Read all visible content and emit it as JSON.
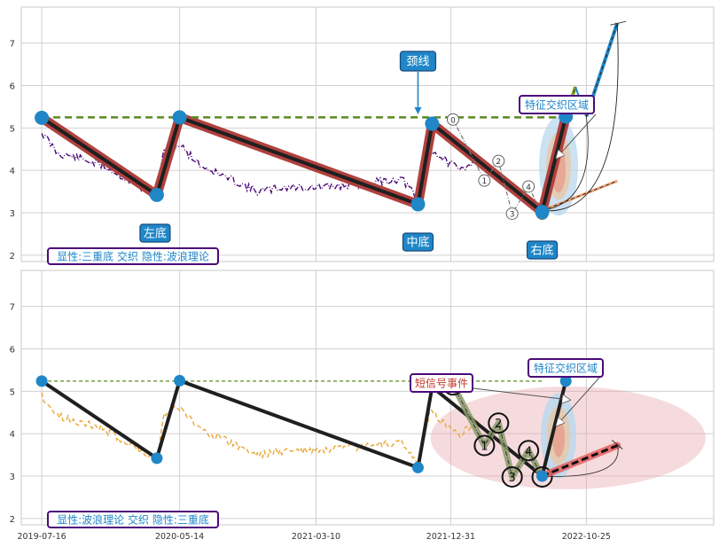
{
  "chart_data": [
    {
      "type": "line",
      "panel": "top",
      "xlim": [
        "2019-06-01",
        "2023-08-01"
      ],
      "ylim": [
        1.85,
        7.85
      ],
      "yticks": [
        2,
        3,
        4,
        5,
        6,
        7
      ],
      "grid": true,
      "price_trace_points": [
        [
          "2019-07-16",
          4.9
        ],
        [
          "2019-08-20",
          4.4
        ],
        [
          "2019-10-01",
          4.3
        ],
        [
          "2019-12-01",
          4.1
        ],
        [
          "2020-02-01",
          3.7
        ],
        [
          "2020-03-25",
          3.4
        ],
        [
          "2020-04-10",
          4.5
        ],
        [
          "2020-05-14",
          4.6
        ],
        [
          "2020-07-01",
          4.1
        ],
        [
          "2020-09-01",
          3.8
        ],
        [
          "2020-11-01",
          3.5
        ],
        [
          "2021-01-01",
          3.6
        ],
        [
          "2021-04-01",
          3.6
        ],
        [
          "2021-07-01",
          3.7
        ],
        [
          "2021-09-15",
          3.8
        ],
        [
          "2021-10-20",
          3.3
        ],
        [
          "2021-11-15",
          4.5
        ],
        [
          "2021-12-10",
          4.3
        ],
        [
          "2022-01-20",
          4.0
        ],
        [
          "2022-03-01",
          4.3
        ]
      ],
      "main_path": [
        [
          "2019-07-16",
          5.24
        ],
        [
          "2020-03-25",
          3.42
        ],
        [
          "2020-05-14",
          5.25
        ],
        [
          "2021-10-20",
          3.2
        ],
        [
          "2021-11-20",
          5.1
        ],
        [
          "2022-07-20",
          3.02
        ],
        [
          "2022-09-10",
          5.27
        ]
      ],
      "neckline": {
        "y": 5.25,
        "x": [
          "2019-07-16",
          "2022-09-10"
        ]
      },
      "wave_points": [
        {
          "label": "0",
          "x": "2022-01-05",
          "y": 5.2
        },
        {
          "label": "1",
          "x": "2022-03-15",
          "y": 3.76
        },
        {
          "label": "2",
          "x": "2022-04-15",
          "y": 4.22
        },
        {
          "label": "3",
          "x": "2022-05-15",
          "y": 2.98
        },
        {
          "label": "4",
          "x": "2022-06-20",
          "y": 3.62
        },
        {
          "label": "5",
          "x": "2022-07-20",
          "y": 2.98
        }
      ],
      "projection": [
        [
          "2022-09-10",
          5.27
        ],
        [
          "2022-10-01",
          5.97
        ],
        [
          "2022-10-25",
          5.27
        ],
        [
          "2023-01-01",
          7.47
        ]
      ],
      "side_projection": [
        [
          "2022-07-20",
          3.05
        ],
        [
          "2023-01-01",
          3.75
        ]
      ],
      "annotations": {
        "neckline_label": "颈线",
        "left_bottom": "左底",
        "mid_bottom": "中底",
        "right_bottom": "右底",
        "zone_label": "特征交织区域",
        "info": "显性:三重底 交织 隐性:波浪理论"
      }
    },
    {
      "type": "line",
      "panel": "bottom",
      "xlim": [
        "2019-06-01",
        "2023-08-01"
      ],
      "ylim": [
        1.85,
        7.85
      ],
      "yticks": [
        2,
        3,
        4,
        5,
        6,
        7
      ],
      "xticks": [
        "2019-07-16",
        "2020-05-14",
        "2021-03-10",
        "2021-12-31",
        "2022-10-25"
      ],
      "grid": true,
      "price_trace_points": [
        [
          "2019-07-16",
          4.9
        ],
        [
          "2019-08-20",
          4.4
        ],
        [
          "2019-10-01",
          4.3
        ],
        [
          "2019-12-01",
          4.1
        ],
        [
          "2020-02-01",
          3.7
        ],
        [
          "2020-03-25",
          3.4
        ],
        [
          "2020-04-10",
          4.5
        ],
        [
          "2020-05-14",
          4.6
        ],
        [
          "2020-07-01",
          4.1
        ],
        [
          "2020-09-01",
          3.8
        ],
        [
          "2020-11-01",
          3.5
        ],
        [
          "2021-01-01",
          3.6
        ],
        [
          "2021-04-01",
          3.6
        ],
        [
          "2021-07-01",
          3.7
        ],
        [
          "2021-09-15",
          3.8
        ],
        [
          "2021-10-20",
          3.3
        ],
        [
          "2021-11-15",
          4.5
        ],
        [
          "2021-12-10",
          4.3
        ],
        [
          "2022-01-20",
          4.0
        ],
        [
          "2022-03-01",
          4.3
        ]
      ],
      "main_path": [
        [
          "2019-07-16",
          5.24
        ],
        [
          "2020-03-25",
          3.42
        ],
        [
          "2020-05-14",
          5.25
        ],
        [
          "2021-10-20",
          3.2
        ],
        [
          "2021-11-20",
          5.1
        ],
        [
          "2022-07-20",
          3.0
        ],
        [
          "2022-09-10",
          5.24
        ]
      ],
      "neckline": {
        "y": 5.24,
        "x": [
          "2019-07-16",
          "2022-07-20"
        ]
      },
      "wave_points": [
        {
          "label": "0",
          "x": "2022-01-05",
          "y": 5.15
        },
        {
          "label": "1",
          "x": "2022-03-15",
          "y": 3.72
        },
        {
          "label": "2",
          "x": "2022-04-15",
          "y": 4.25
        },
        {
          "label": "3",
          "x": "2022-05-15",
          "y": 2.98
        },
        {
          "label": "4",
          "x": "2022-06-20",
          "y": 3.6
        },
        {
          "label": "5",
          "x": "2022-07-20",
          "y": 2.98
        }
      ],
      "side_projection": [
        [
          "2022-07-20",
          3.0
        ],
        [
          "2023-01-01",
          3.72
        ]
      ],
      "annotations": {
        "short_signal": "短信号事件",
        "zone_label": "特征交织区域",
        "info": "显性:波浪理论 交织 隐性:三重底"
      }
    }
  ],
  "colors": {
    "neckline": "#5a8a1e",
    "thick_line": "#1f1f1f",
    "thick_outline": "#b0413e",
    "marker": "#1f86c8",
    "trace_top": "#4b0a7a",
    "trace_bottom": "#e8a838",
    "label_bg": "#1f86c8",
    "info_border": "#4b0a7a",
    "info_text": "#1f86c8",
    "zone_text": "#1f86c8",
    "signal_text": "#c0392b",
    "projection_blue": "#1f86c8",
    "projection_green": "#8aa82a",
    "wave_line": "#8a9a6a",
    "ellipse_red": "#e8a0a8",
    "bottom_projection": "#e86060"
  }
}
